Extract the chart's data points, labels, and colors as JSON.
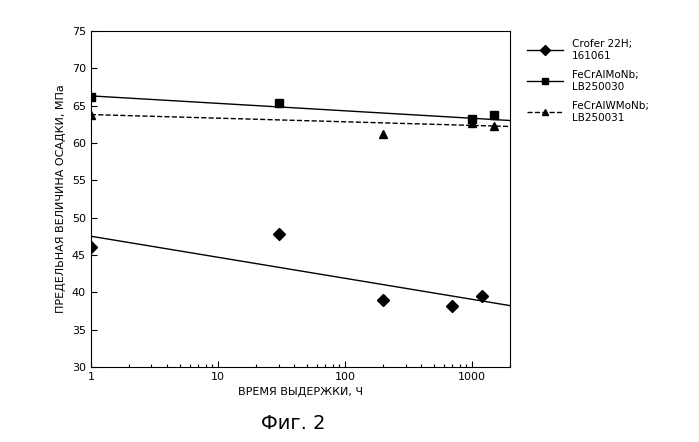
{
  "title": "Фиг. 2",
  "ylabel": "ПРЕДЕЛЬНАЯ ВЕЛИЧИНА ОСАДКИ, МПа",
  "xlabel": "ВРЕМЯ ВЫДЕРЖКИ, Ч",
  "ylim": [
    30,
    75
  ],
  "xlim": [
    1,
    2000
  ],
  "yticks": [
    30,
    35,
    40,
    45,
    50,
    55,
    60,
    65,
    70,
    75
  ],
  "xticks": [
    1,
    10,
    100,
    1000
  ],
  "series": [
    {
      "label": "Crofer 22H;\n161061",
      "x": [
        1,
        30,
        200,
        700,
        1200
      ],
      "y": [
        46.0,
        47.8,
        39.0,
        38.2,
        39.5
      ],
      "trend_x": [
        1,
        2000
      ],
      "trend_y": [
        47.5,
        38.2
      ],
      "marker": "D",
      "linestyle": "-",
      "color": "#000000",
      "markersize": 6
    },
    {
      "label": "FeCrAlMoNb;\nLB250030",
      "x": [
        1,
        30,
        1000,
        1500
      ],
      "y": [
        66.2,
        65.3,
        63.2,
        63.8
      ],
      "trend_x": [
        1,
        2000
      ],
      "trend_y": [
        66.3,
        63.0
      ],
      "marker": "s",
      "linestyle": "-",
      "color": "#000000",
      "markersize": 6
    },
    {
      "label": "FeCrAlWMoNb;\nLB250031",
      "x": [
        1,
        200,
        1000,
        1500
      ],
      "y": [
        63.7,
        61.2,
        62.7,
        62.2
      ],
      "trend_x": [
        1,
        2000
      ],
      "trend_y": [
        63.8,
        62.2
      ],
      "marker": "^",
      "linestyle": "--",
      "color": "#000000",
      "markersize": 6
    }
  ],
  "background_color": "#ffffff",
  "figsize": [
    6.99,
    4.42
  ],
  "dpi": 100
}
